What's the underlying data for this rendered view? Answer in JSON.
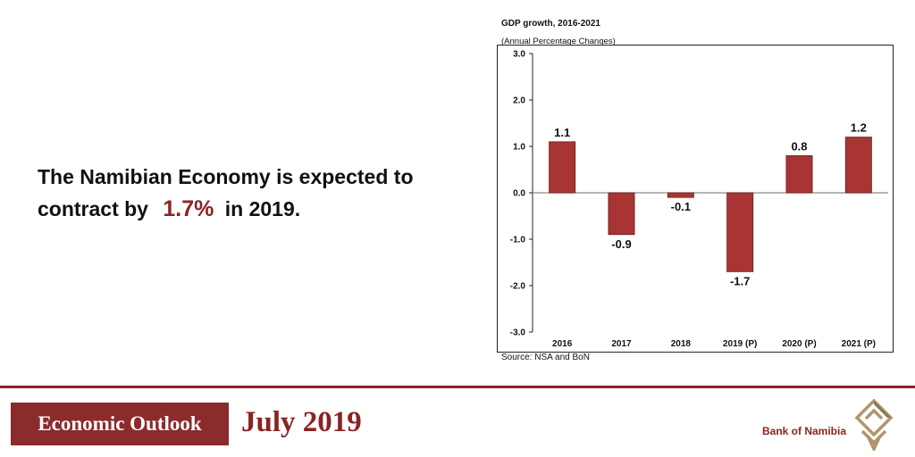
{
  "headline": {
    "text_before": "The Namibian Economy is expected to contract by",
    "highlight": "1.7%",
    "text_after": "in 2019."
  },
  "chart_data": {
    "type": "bar",
    "title": "GDP growth, 2016-2021",
    "subtitle": "(Annual Percentage Changes)",
    "categories": [
      "2016",
      "2017",
      "2018",
      "2019 (P)",
      "2020 (P)",
      "2021 (P)"
    ],
    "values": [
      1.1,
      -0.9,
      -0.1,
      -1.7,
      0.8,
      1.2
    ],
    "value_labels": [
      "1.1",
      "-0.9",
      "-0.1",
      "-1.7",
      "0.8",
      "1.2"
    ],
    "yticks": [
      "3.0",
      "2.0",
      "1.0",
      "0.0",
      "-1.0",
      "-2.0",
      "-3.0"
    ],
    "ylim": [
      -3.0,
      3.0
    ],
    "xlabel": "",
    "ylabel": "",
    "source": "Source: NSA and BoN",
    "bar_color": "#a83434"
  },
  "footer": {
    "outlook_label": "Economic Outlook",
    "date": "July 2019",
    "bank_name": "Bank of Namibia",
    "accent_color": "#8b2323"
  }
}
